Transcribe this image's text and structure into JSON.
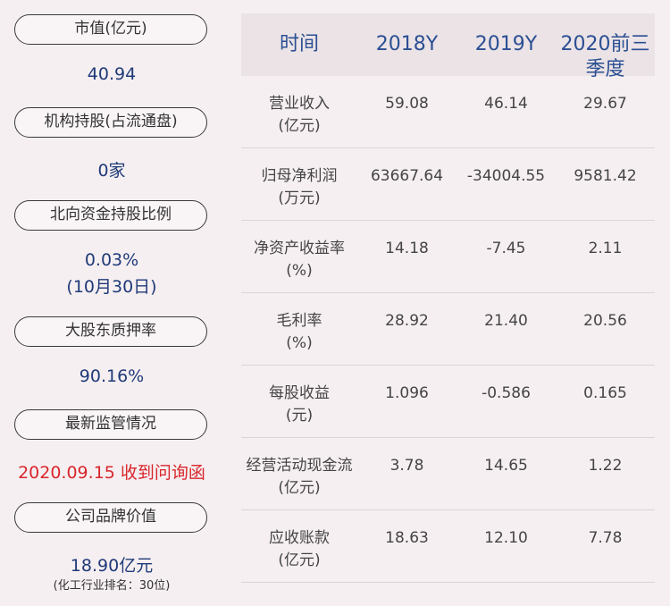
{
  "left": {
    "items": [
      {
        "label": "市值(亿元)",
        "values": [
          "40.94"
        ]
      },
      {
        "label": "机构持股(占流通盘)",
        "values": [
          "0家"
        ]
      },
      {
        "label": "北向资金持股比例",
        "values": [
          "0.03%",
          "(10月30日)"
        ]
      },
      {
        "label": "大股东质押率",
        "values": [
          "90.16%"
        ]
      },
      {
        "label": "最新监管情况",
        "values": [
          "2020.09.15 收到问询函"
        ]
      },
      {
        "label": "公司品牌价值",
        "values": [
          "18.90亿元",
          "(化工行业排名：30位)"
        ]
      }
    ]
  },
  "table": {
    "header": [
      "时间",
      "2018Y",
      "2019Y",
      "2020前三季度"
    ],
    "rows": [
      {
        "label": "营业收入",
        "unit": "(亿元)",
        "values": [
          "59.08",
          "46.14",
          "29.67"
        ]
      },
      {
        "label": "归母净利润",
        "unit": "(万元)",
        "values": [
          "63667.64",
          "-34004.55",
          "9581.42"
        ]
      },
      {
        "label": "净资产收益率",
        "unit": "(%)",
        "values": [
          "14.18",
          "-7.45",
          "2.11"
        ]
      },
      {
        "label": "毛利率",
        "unit": "(%)",
        "values": [
          "28.92",
          "21.40",
          "20.56"
        ]
      },
      {
        "label": "每股收益",
        "unit": "(元)",
        "values": [
          "1.096",
          "-0.586",
          "0.165"
        ]
      },
      {
        "label": "经营活动现金流",
        "unit": "(亿元)",
        "values": [
          "3.78",
          "14.65",
          "1.22"
        ]
      },
      {
        "label": "应收账款",
        "unit": "(亿元)",
        "values": [
          "18.63",
          "12.10",
          "7.78"
        ]
      }
    ]
  }
}
